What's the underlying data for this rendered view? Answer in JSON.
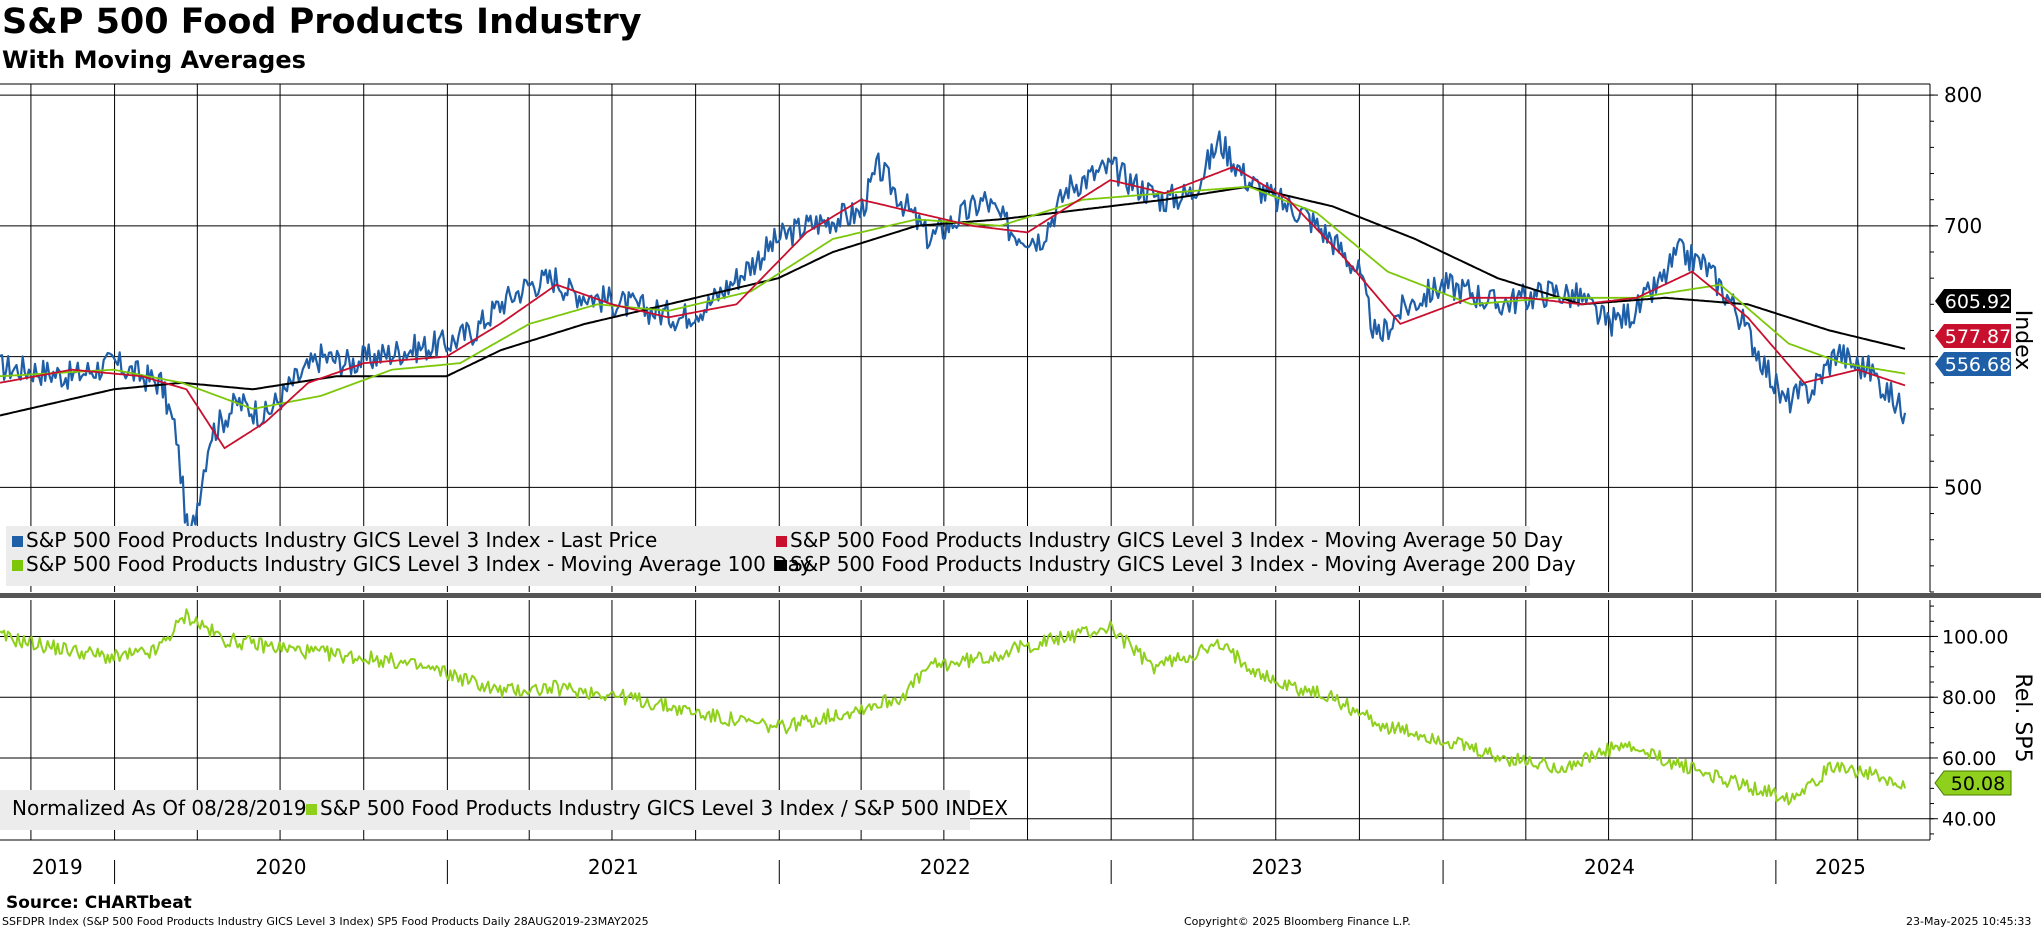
{
  "title": "S&P 500 Food Products Industry",
  "subtitle": "With Moving Averages",
  "source": "Source: CHARTbeat",
  "footer": {
    "left": "SSFDPR Index (S&P 500 Food Products Industry GICS Level 3 Index) SP5 Food Products  Daily 28AUG2019-23MAY2025",
    "center": "Copyright© 2025 Bloomberg Finance L.P.",
    "right": "23-May-2025 10:45:33"
  },
  "colors": {
    "last_price": "#1f5fa8",
    "ma50": "#c8102e",
    "ma100": "#7cc70a",
    "ma200": "#000000",
    "relative": "#8fd01c"
  },
  "chart_data": [
    {
      "type": "line",
      "panel": "upper",
      "yaxis_label": "Index",
      "ylim": [
        420,
        810
      ],
      "yticks": [
        500,
        600,
        700,
        800
      ],
      "ytick_labels": [
        "500",
        "",
        "700",
        "800"
      ],
      "xlim": [
        "2019-08-28",
        "2025-05-23"
      ],
      "x_labels": [
        "2019",
        "2020",
        "2021",
        "2022",
        "2023",
        "2024",
        "2025"
      ],
      "grid": true,
      "legend_position": "bottom-left",
      "series": [
        {
          "name": "S&P 500 Food Products Industry GICS Level 3 Index - Last Price",
          "color_key": "last_price",
          "last_label": "556.68",
          "points": [
            [
              "2019-08-28",
              592
            ],
            [
              "2019-10-01",
              590
            ],
            [
              "2019-11-15",
              585
            ],
            [
              "2019-12-31",
              595
            ],
            [
              "2020-01-31",
              585
            ],
            [
              "2020-02-21",
              580
            ],
            [
              "2020-03-09",
              540
            ],
            [
              "2020-03-23",
              455
            ],
            [
              "2020-04-15",
              540
            ],
            [
              "2020-05-15",
              565
            ],
            [
              "2020-06-15",
              555
            ],
            [
              "2020-07-15",
              580
            ],
            [
              "2020-08-15",
              600
            ],
            [
              "2020-09-15",
              595
            ],
            [
              "2020-10-15",
              600
            ],
            [
              "2020-11-15",
              605
            ],
            [
              "2020-12-31",
              610
            ],
            [
              "2021-01-31",
              620
            ],
            [
              "2021-02-28",
              640
            ],
            [
              "2021-03-31",
              655
            ],
            [
              "2021-04-30",
              660
            ],
            [
              "2021-05-15",
              650
            ],
            [
              "2021-06-15",
              645
            ],
            [
              "2021-07-15",
              640
            ],
            [
              "2021-08-15",
              635
            ],
            [
              "2021-09-15",
              630
            ],
            [
              "2021-10-15",
              640
            ],
            [
              "2021-11-15",
              660
            ],
            [
              "2021-12-31",
              690
            ],
            [
              "2022-01-31",
              700
            ],
            [
              "2022-02-28",
              705
            ],
            [
              "2022-03-31",
              710
            ],
            [
              "2022-04-20",
              745
            ],
            [
              "2022-05-15",
              720
            ],
            [
              "2022-06-15",
              690
            ],
            [
              "2022-07-15",
              705
            ],
            [
              "2022-08-15",
              720
            ],
            [
              "2022-09-15",
              695
            ],
            [
              "2022-10-15",
              690
            ],
            [
              "2022-11-15",
              730
            ],
            [
              "2022-12-31",
              745
            ],
            [
              "2023-01-31",
              730
            ],
            [
              "2023-02-28",
              720
            ],
            [
              "2023-03-31",
              725
            ],
            [
              "2023-04-30",
              765
            ],
            [
              "2023-05-31",
              735
            ],
            [
              "2023-06-30",
              720
            ],
            [
              "2023-07-31",
              710
            ],
            [
              "2023-08-31",
              690
            ],
            [
              "2023-09-30",
              665
            ],
            [
              "2023-10-20",
              612
            ],
            [
              "2023-11-15",
              635
            ],
            [
              "2023-12-31",
              655
            ],
            [
              "2024-01-31",
              650
            ],
            [
              "2024-02-28",
              640
            ],
            [
              "2024-03-31",
              645
            ],
            [
              "2024-04-30",
              650
            ],
            [
              "2024-05-31",
              645
            ],
            [
              "2024-06-30",
              625
            ],
            [
              "2024-07-31",
              635
            ],
            [
              "2024-08-31",
              660
            ],
            [
              "2024-09-15",
              680
            ],
            [
              "2024-10-15",
              670
            ],
            [
              "2024-11-15",
              640
            ],
            [
              "2024-12-15",
              600
            ],
            [
              "2025-01-10",
              565
            ],
            [
              "2025-02-10",
              575
            ],
            [
              "2025-03-10",
              605
            ],
            [
              "2025-03-25",
              595
            ],
            [
              "2025-04-15",
              590
            ],
            [
              "2025-05-01",
              575
            ],
            [
              "2025-05-23",
              557
            ]
          ]
        },
        {
          "name": "S&P 500 Food Products Industry GICS Level 3 Index - Moving Average 50 Day",
          "color_key": "ma50",
          "last_label": "577.87",
          "points": [
            [
              "2019-08-28",
              580
            ],
            [
              "2019-11-15",
              590
            ],
            [
              "2020-01-31",
              585
            ],
            [
              "2020-03-20",
              575
            ],
            [
              "2020-05-01",
              530
            ],
            [
              "2020-06-15",
              550
            ],
            [
              "2020-08-01",
              580
            ],
            [
              "2020-10-01",
              595
            ],
            [
              "2020-12-31",
              600
            ],
            [
              "2021-02-28",
              625
            ],
            [
              "2021-05-01",
              655
            ],
            [
              "2021-07-01",
              640
            ],
            [
              "2021-09-01",
              630
            ],
            [
              "2021-11-15",
              640
            ],
            [
              "2022-01-31",
              695
            ],
            [
              "2022-04-01",
              720
            ],
            [
              "2022-06-01",
              710
            ],
            [
              "2022-08-01",
              700
            ],
            [
              "2022-10-01",
              695
            ],
            [
              "2022-12-31",
              735
            ],
            [
              "2023-03-01",
              725
            ],
            [
              "2023-05-15",
              745
            ],
            [
              "2023-07-15",
              720
            ],
            [
              "2023-09-15",
              675
            ],
            [
              "2023-11-15",
              625
            ],
            [
              "2024-01-31",
              645
            ],
            [
              "2024-04-01",
              645
            ],
            [
              "2024-06-01",
              640
            ],
            [
              "2024-08-01",
              645
            ],
            [
              "2024-10-01",
              665
            ],
            [
              "2024-12-01",
              630
            ],
            [
              "2025-02-01",
              580
            ],
            [
              "2025-04-01",
              590
            ],
            [
              "2025-05-23",
              578
            ]
          ]
        },
        {
          "name": "S&P 500 Food Products Industry GICS Level 3 Index - Moving Average 100 Day",
          "color_key": "ma100",
          "last_label": "",
          "points": [
            [
              "2019-08-28",
              585
            ],
            [
              "2019-12-31",
              590
            ],
            [
              "2020-03-15",
              580
            ],
            [
              "2020-06-01",
              560
            ],
            [
              "2020-08-15",
              570
            ],
            [
              "2020-11-01",
              590
            ],
            [
              "2021-01-15",
              595
            ],
            [
              "2021-04-01",
              625
            ],
            [
              "2021-06-15",
              640
            ],
            [
              "2021-09-01",
              635
            ],
            [
              "2021-12-01",
              650
            ],
            [
              "2022-03-01",
              690
            ],
            [
              "2022-06-01",
              705
            ],
            [
              "2022-09-01",
              700
            ],
            [
              "2022-12-01",
              720
            ],
            [
              "2023-03-01",
              725
            ],
            [
              "2023-06-01",
              730
            ],
            [
              "2023-08-15",
              710
            ],
            [
              "2023-11-01",
              665
            ],
            [
              "2024-02-01",
              640
            ],
            [
              "2024-05-01",
              645
            ],
            [
              "2024-08-01",
              645
            ],
            [
              "2024-11-01",
              655
            ],
            [
              "2025-01-15",
              610
            ],
            [
              "2025-03-15",
              595
            ],
            [
              "2025-05-23",
              587
            ]
          ]
        },
        {
          "name": "S&P 500 Food Products Industry GICS Level 3 Index - Moving Average 200 Day",
          "color_key": "ma200",
          "last_label": "605.92",
          "points": [
            [
              "2019-08-28",
              555
            ],
            [
              "2019-12-31",
              575
            ],
            [
              "2020-03-15",
              580
            ],
            [
              "2020-06-01",
              575
            ],
            [
              "2020-09-01",
              585
            ],
            [
              "2020-12-31",
              585
            ],
            [
              "2021-03-01",
              605
            ],
            [
              "2021-06-01",
              625
            ],
            [
              "2021-09-01",
              640
            ],
            [
              "2021-12-31",
              660
            ],
            [
              "2022-03-01",
              680
            ],
            [
              "2022-06-01",
              700
            ],
            [
              "2022-09-01",
              705
            ],
            [
              "2022-12-31",
              715
            ],
            [
              "2023-03-01",
              720
            ],
            [
              "2023-06-01",
              730
            ],
            [
              "2023-09-01",
              715
            ],
            [
              "2023-12-01",
              690
            ],
            [
              "2024-03-01",
              660
            ],
            [
              "2024-06-01",
              640
            ],
            [
              "2024-09-01",
              645
            ],
            [
              "2024-12-01",
              640
            ],
            [
              "2025-03-01",
              620
            ],
            [
              "2025-05-23",
              606
            ]
          ]
        }
      ]
    },
    {
      "type": "line",
      "panel": "lower",
      "yaxis_label": "Rel. SP5",
      "ylim": [
        33,
        112
      ],
      "yticks": [
        40,
        60,
        80,
        100
      ],
      "ytick_labels": [
        "40.00",
        "60.00",
        "80.00",
        "100.00"
      ],
      "legend_position": "bottom-left",
      "legend_note": "Normalized As Of 08/28/2019",
      "series": [
        {
          "name": "S&P 500 Food Products Industry GICS Level 3 Index / S&P 500 INDEX",
          "color_key": "relative",
          "last_label": "50.08",
          "points": [
            [
              "2019-08-28",
              100
            ],
            [
              "2019-10-15",
              97
            ],
            [
              "2019-12-31",
              93
            ],
            [
              "2020-02-15",
              95
            ],
            [
              "2020-03-20",
              107
            ],
            [
              "2020-04-30",
              99
            ],
            [
              "2020-07-31",
              95
            ],
            [
              "2020-10-31",
              92
            ],
            [
              "2020-12-31",
              88
            ],
            [
              "2021-02-28",
              82
            ],
            [
              "2021-04-30",
              83
            ],
            [
              "2021-06-30",
              81
            ],
            [
              "2021-08-31",
              77
            ],
            [
              "2021-10-31",
              73
            ],
            [
              "2021-12-31",
              70
            ],
            [
              "2022-03-15",
              75
            ],
            [
              "2022-05-15",
              80
            ],
            [
              "2022-06-15",
              90
            ],
            [
              "2022-08-15",
              93
            ],
            [
              "2022-10-15",
              98
            ],
            [
              "2022-12-31",
              103
            ],
            [
              "2023-02-15",
              90
            ],
            [
              "2023-04-30",
              97
            ],
            [
              "2023-06-30",
              85
            ],
            [
              "2023-08-31",
              80
            ],
            [
              "2023-10-31",
              70
            ],
            [
              "2023-12-31",
              66
            ],
            [
              "2024-03-01",
              60
            ],
            [
              "2024-05-15",
              57
            ],
            [
              "2024-07-15",
              64
            ],
            [
              "2024-09-15",
              58
            ],
            [
              "2024-11-15",
              52
            ],
            [
              "2025-01-15",
              47
            ],
            [
              "2025-03-10",
              58
            ],
            [
              "2025-04-10",
              55
            ],
            [
              "2025-05-23",
              50
            ]
          ]
        }
      ]
    }
  ]
}
